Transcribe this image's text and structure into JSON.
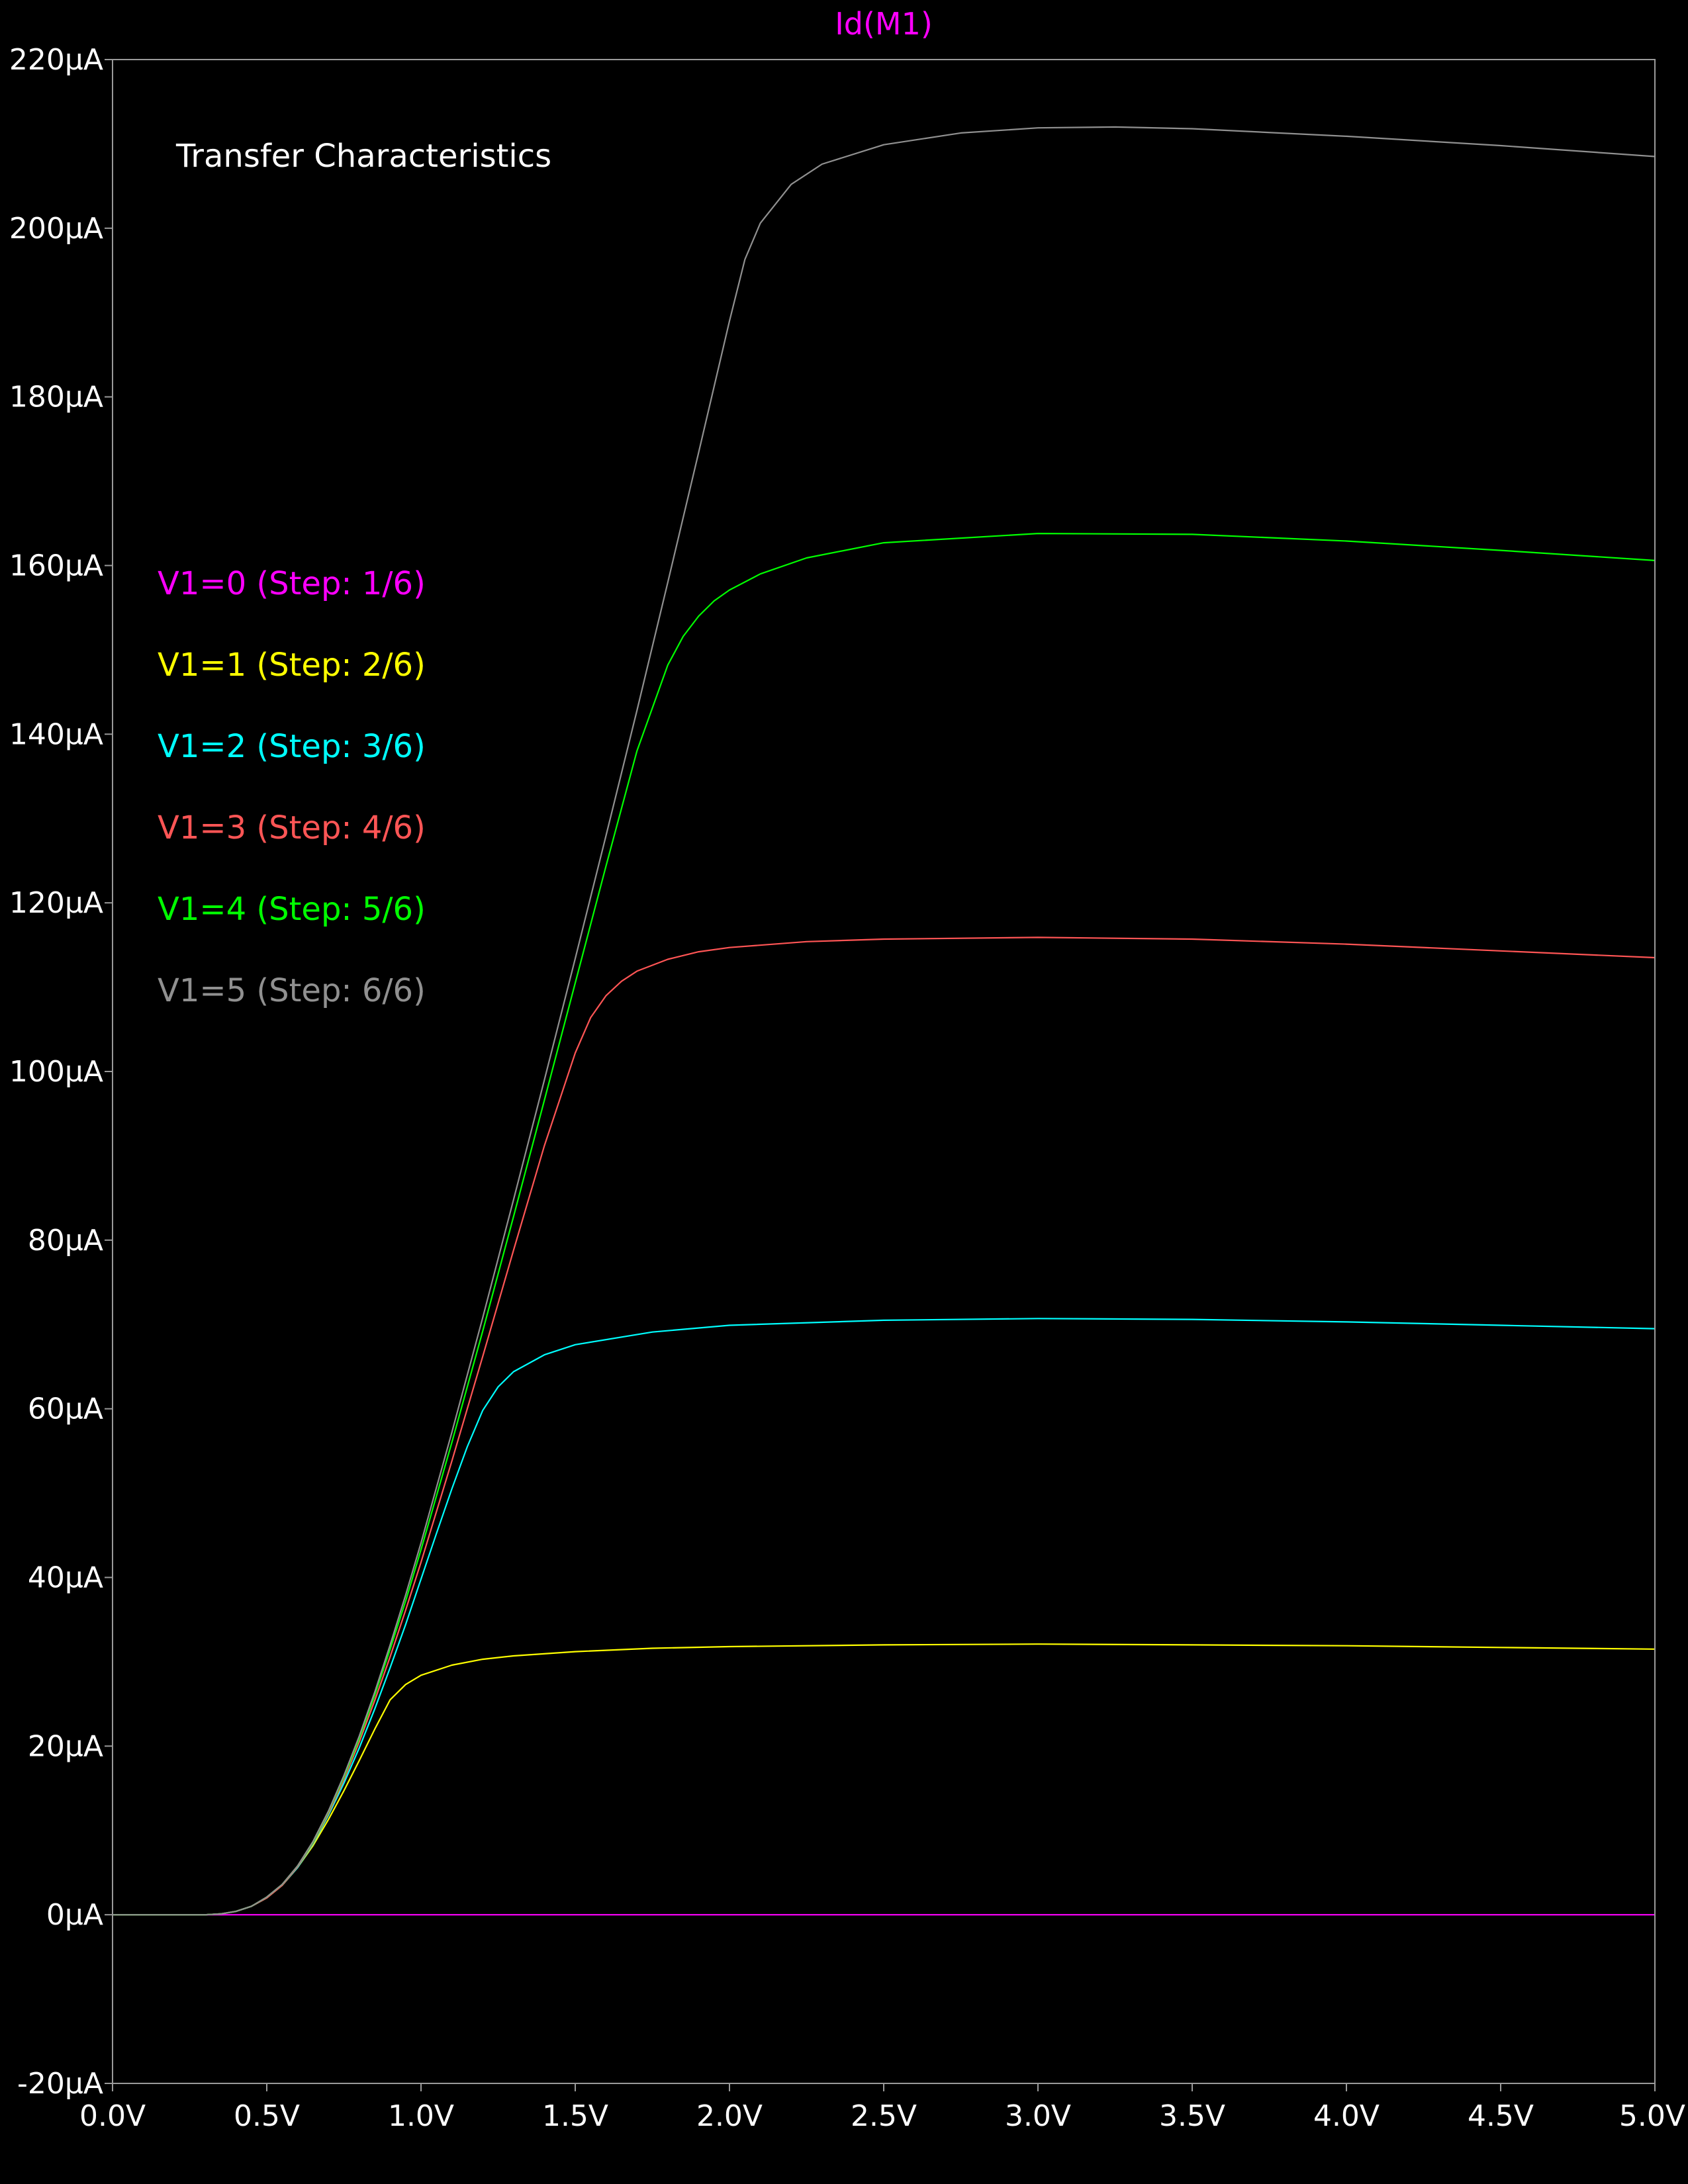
{
  "chart_data": {
    "type": "line",
    "title": "Id(M1)",
    "title_color": "#ff00ff",
    "annotation": "Transfer Characteristics",
    "x_unit": "V",
    "y_unit": "µA",
    "xlim": [
      0,
      5
    ],
    "ylim": [
      -20,
      220
    ],
    "x_ticks": [
      0,
      0.5,
      1,
      1.5,
      2,
      2.5,
      3,
      3.5,
      4,
      4.5,
      5
    ],
    "x_tick_labels": [
      "0.0V",
      "0.5V",
      "1.0V",
      "1.5V",
      "2.0V",
      "2.5V",
      "3.0V",
      "3.5V",
      "4.0V",
      "4.5V",
      "5.0V"
    ],
    "y_ticks": [
      -20,
      0,
      20,
      40,
      60,
      80,
      100,
      120,
      140,
      160,
      180,
      200,
      220
    ],
    "y_tick_labels": [
      "-20µA",
      "0µA",
      "20µA",
      "40µA",
      "60µA",
      "80µA",
      "100µA",
      "120µA",
      "140µA",
      "160µA",
      "180µA",
      "200µA",
      "220µA"
    ],
    "grid": false,
    "background": "#000000",
    "axis_color": "#9a9a9a",
    "legend_position": "upper-left",
    "series": [
      {
        "name": "V1=0  (Step: 1/6)",
        "color": "#ff00ff",
        "x": [
          0,
          5
        ],
        "y": [
          0,
          0
        ]
      },
      {
        "name": "V1=1  (Step: 2/6)",
        "color": "#ffff00",
        "x": [
          0,
          0.3,
          0.35,
          0.4,
          0.45,
          0.5,
          0.55,
          0.6,
          0.65,
          0.7,
          0.75,
          0.8,
          0.85,
          0.9,
          0.95,
          1.0,
          1.1,
          1.2,
          1.3,
          1.5,
          1.75,
          2.0,
          2.5,
          3.0,
          3.5,
          4.0,
          4.5,
          5.0
        ],
        "y": [
          0,
          0,
          0.1,
          0.4,
          1.0,
          2.0,
          3.5,
          5.6,
          8.2,
          11.3,
          14.7,
          18.3,
          22.0,
          25.5,
          27.3,
          28.4,
          29.6,
          30.3,
          30.7,
          31.2,
          31.6,
          31.8,
          32.0,
          32.1,
          32.0,
          31.9,
          31.7,
          31.5
        ]
      },
      {
        "name": "V1=2  (Step: 3/6)",
        "color": "#00ffff",
        "x": [
          0,
          0.3,
          0.35,
          0.4,
          0.45,
          0.5,
          0.55,
          0.6,
          0.65,
          0.7,
          0.75,
          0.8,
          0.85,
          0.9,
          0.95,
          1.0,
          1.05,
          1.1,
          1.15,
          1.2,
          1.25,
          1.3,
          1.4,
          1.5,
          1.75,
          2.0,
          2.5,
          3.0,
          3.5,
          4.0,
          4.5,
          5.0
        ],
        "y": [
          0,
          0,
          0.1,
          0.4,
          1.0,
          2.0,
          3.5,
          5.6,
          8.4,
          11.8,
          15.6,
          19.8,
          24.4,
          29.3,
          34.4,
          39.8,
          45.2,
          50.5,
          55.5,
          59.8,
          62.6,
          64.4,
          66.4,
          67.6,
          69.1,
          69.9,
          70.5,
          70.7,
          70.6,
          70.3,
          69.9,
          69.5
        ]
      },
      {
        "name": "V1=3  (Step: 4/6)",
        "color": "#ff5555",
        "x": [
          0,
          0.3,
          0.35,
          0.4,
          0.45,
          0.5,
          0.55,
          0.6,
          0.65,
          0.7,
          0.75,
          0.8,
          0.85,
          0.9,
          0.95,
          1.0,
          1.1,
          1.2,
          1.3,
          1.4,
          1.5,
          1.55,
          1.6,
          1.65,
          1.7,
          1.8,
          1.9,
          2.0,
          2.25,
          2.5,
          3.0,
          3.5,
          4.0,
          4.5,
          5.0
        ],
        "y": [
          0,
          0,
          0.1,
          0.4,
          1.0,
          2.0,
          3.5,
          5.7,
          8.5,
          12.0,
          16.0,
          20.5,
          25.4,
          30.6,
          36.1,
          41.8,
          53.8,
          66.2,
          78.8,
          91.2,
          102.2,
          106.4,
          109.0,
          110.7,
          111.9,
          113.3,
          114.2,
          114.7,
          115.4,
          115.7,
          115.9,
          115.7,
          115.1,
          114.3,
          113.5
        ]
      },
      {
        "name": "V1=4  (Step: 5/6)",
        "color": "#00ff00",
        "x": [
          0,
          0.3,
          0.35,
          0.4,
          0.45,
          0.5,
          0.55,
          0.6,
          0.65,
          0.7,
          0.75,
          0.8,
          0.85,
          0.9,
          0.95,
          1.0,
          1.1,
          1.2,
          1.3,
          1.4,
          1.5,
          1.6,
          1.7,
          1.8,
          1.85,
          1.9,
          1.95,
          2.0,
          2.1,
          2.25,
          2.5,
          3.0,
          3.5,
          4.0,
          4.5,
          5.0
        ],
        "y": [
          0,
          0,
          0.1,
          0.4,
          1.0,
          2.1,
          3.6,
          5.8,
          8.6,
          12.2,
          16.3,
          20.9,
          26.0,
          31.5,
          37.2,
          43.3,
          56.0,
          69.2,
          82.8,
          96.6,
          110.5,
          124.4,
          138.0,
          148.2,
          151.6,
          154.0,
          155.8,
          157.1,
          159.0,
          160.9,
          162.7,
          163.8,
          163.7,
          162.9,
          161.8,
          160.6
        ]
      },
      {
        "name": "V1=5  (Step: 6/6)",
        "color": "#909090",
        "x": [
          0,
          0.3,
          0.35,
          0.4,
          0.45,
          0.5,
          0.55,
          0.6,
          0.65,
          0.7,
          0.75,
          0.8,
          0.85,
          0.9,
          0.95,
          1.0,
          1.1,
          1.2,
          1.3,
          1.4,
          1.5,
          1.6,
          1.7,
          1.8,
          1.9,
          2.0,
          2.05,
          2.1,
          2.2,
          2.3,
          2.5,
          2.75,
          3.0,
          3.25,
          3.5,
          4.0,
          4.5,
          5.0
        ],
        "y": [
          0,
          0,
          0.1,
          0.4,
          1.0,
          2.1,
          3.6,
          5.8,
          8.7,
          12.3,
          16.5,
          21.2,
          26.4,
          32.0,
          37.9,
          44.1,
          57.2,
          70.8,
          84.8,
          99.0,
          113.4,
          128.0,
          142.8,
          158.0,
          173.4,
          189.0,
          196.3,
          200.6,
          205.2,
          207.6,
          209.9,
          211.3,
          211.9,
          212.0,
          211.8,
          210.9,
          209.8,
          208.5
        ]
      }
    ]
  }
}
